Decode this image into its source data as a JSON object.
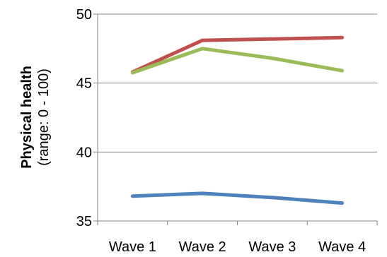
{
  "chart_data": {
    "type": "line",
    "categories": [
      "Wave 1",
      "Wave 2",
      "Wave 3",
      "Wave 4"
    ],
    "series": [
      {
        "color": "#C0504D",
        "values": [
          45.8,
          48.1,
          48.2,
          48.3
        ]
      },
      {
        "color": "#9BBB59",
        "values": [
          45.75,
          47.5,
          46.8,
          45.9
        ]
      },
      {
        "color": "#4F81BD",
        "values": [
          36.8,
          37.0,
          36.7,
          36.3
        ]
      }
    ],
    "ylabel": "Physical health",
    "ylabel_sub": "(range: 0 - 100)",
    "ylim": [
      35,
      50
    ],
    "yticks": [
      "35",
      "40",
      "45",
      "50"
    ],
    "grid": true,
    "legend": "none"
  }
}
